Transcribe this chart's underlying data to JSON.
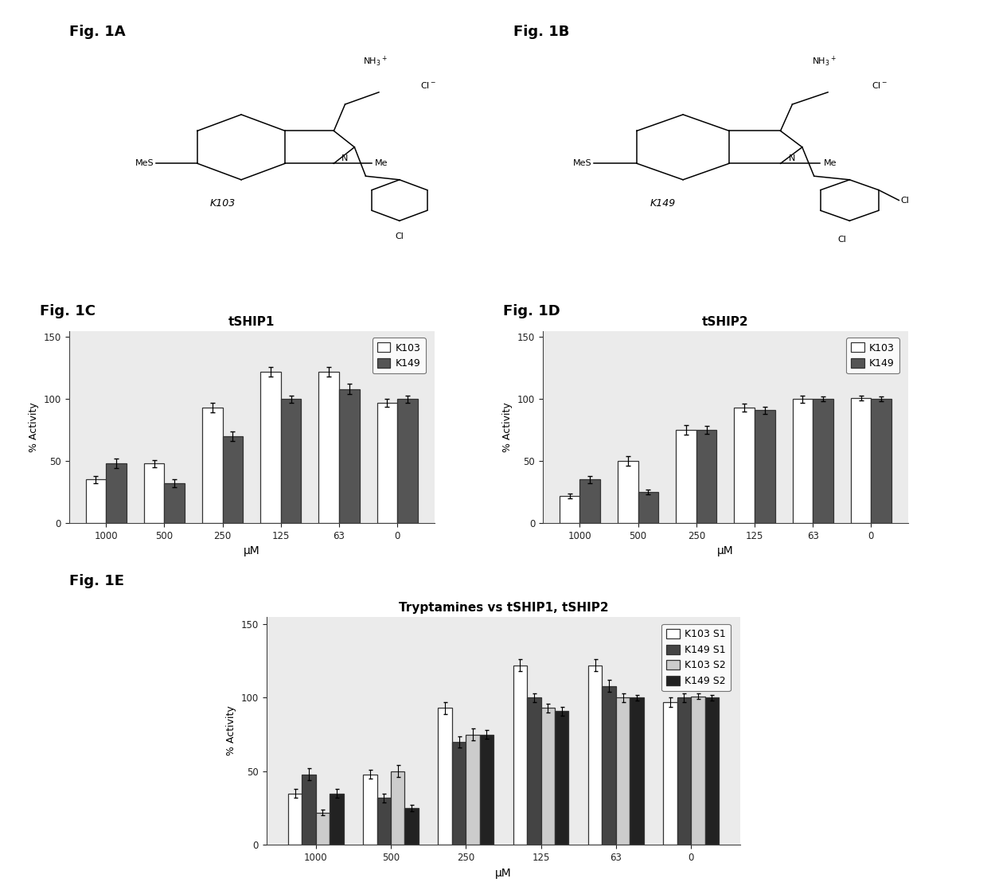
{
  "fig1C_title": "tSHIP1",
  "fig1D_title": "tSHIP2",
  "fig1E_title": "Tryptamines vs tSHIP1, tSHIP2",
  "xlabel": "μM",
  "ylabel": "% Activity",
  "x_labels": [
    "1000",
    "500",
    "250",
    "125",
    "63",
    "0"
  ],
  "ship1_K103": [
    35,
    48,
    93,
    122,
    122,
    97
  ],
  "ship1_K149": [
    48,
    32,
    70,
    100,
    108,
    100
  ],
  "ship1_K103_err": [
    3,
    3,
    4,
    4,
    4,
    3
  ],
  "ship1_K149_err": [
    4,
    3,
    4,
    3,
    4,
    3
  ],
  "ship2_K103": [
    22,
    50,
    75,
    93,
    100,
    101
  ],
  "ship2_K149": [
    35,
    25,
    75,
    91,
    100,
    100
  ],
  "ship2_K103_err": [
    2,
    4,
    4,
    3,
    3,
    2
  ],
  "ship2_K149_err": [
    3,
    2,
    3,
    3,
    2,
    2
  ],
  "color_white": "#FFFFFF",
  "color_dark": "#555555",
  "color_light_gray": "#CCCCCC",
  "bar_edge": "#333333",
  "bg_color": "#EBEBEB",
  "yticks": [
    0,
    50,
    100,
    150
  ],
  "ylim": [
    0,
    155
  ],
  "fig1A_label": "Fig. 1A",
  "fig1B_label": "Fig. 1B",
  "fig1C_label": "Fig. 1C",
  "fig1D_label": "Fig. 1D",
  "fig1E_label": "Fig. 1E"
}
